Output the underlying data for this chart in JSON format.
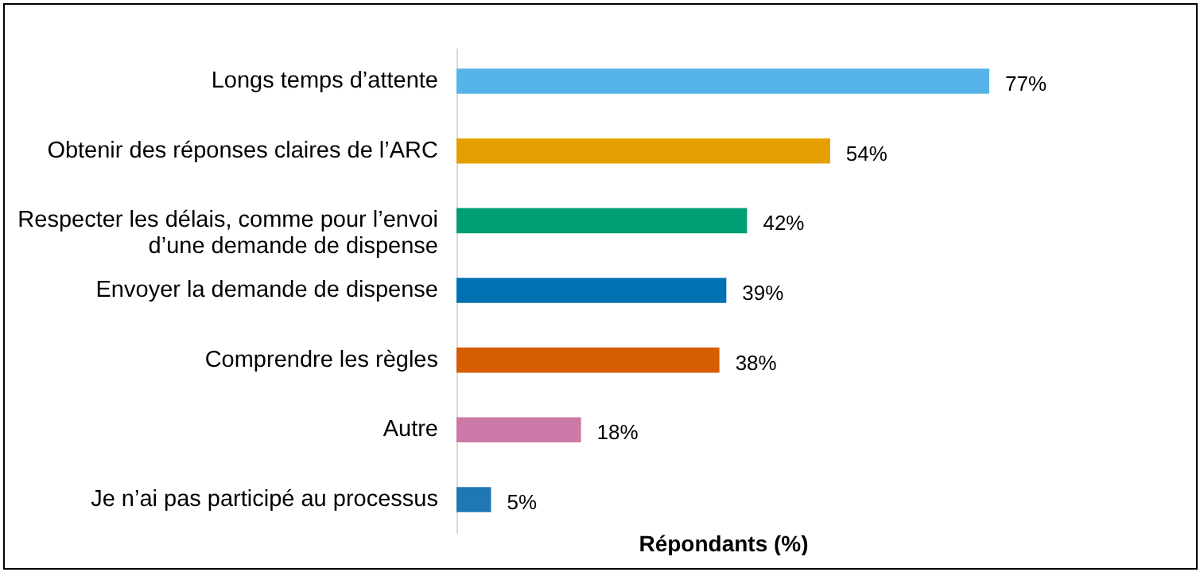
{
  "chart_data": {
    "type": "bar",
    "orientation": "horizontal",
    "xlabel": "Répondants (%)",
    "categories": [
      "Longs temps d’attente",
      "Obtenir des réponses claires de l’ARC",
      "Respecter les délais, comme pour l’envoi d’une demande de dispense",
      "Envoyer la demande de dispense",
      "Comprendre les règles",
      "Autre",
      "Je n’ai pas participé au processus"
    ],
    "values": [
      77,
      54,
      42,
      39,
      38,
      18,
      5
    ],
    "colors": [
      "#56b4e9",
      "#e69f00",
      "#009e73",
      "#0072b2",
      "#d55e00",
      "#cc79a7",
      "#1f77b4"
    ],
    "value_labels": [
      "77%",
      "54%",
      "42%",
      "39%",
      "38%",
      "18%",
      "5%"
    ],
    "tick_labels": "y"
  }
}
